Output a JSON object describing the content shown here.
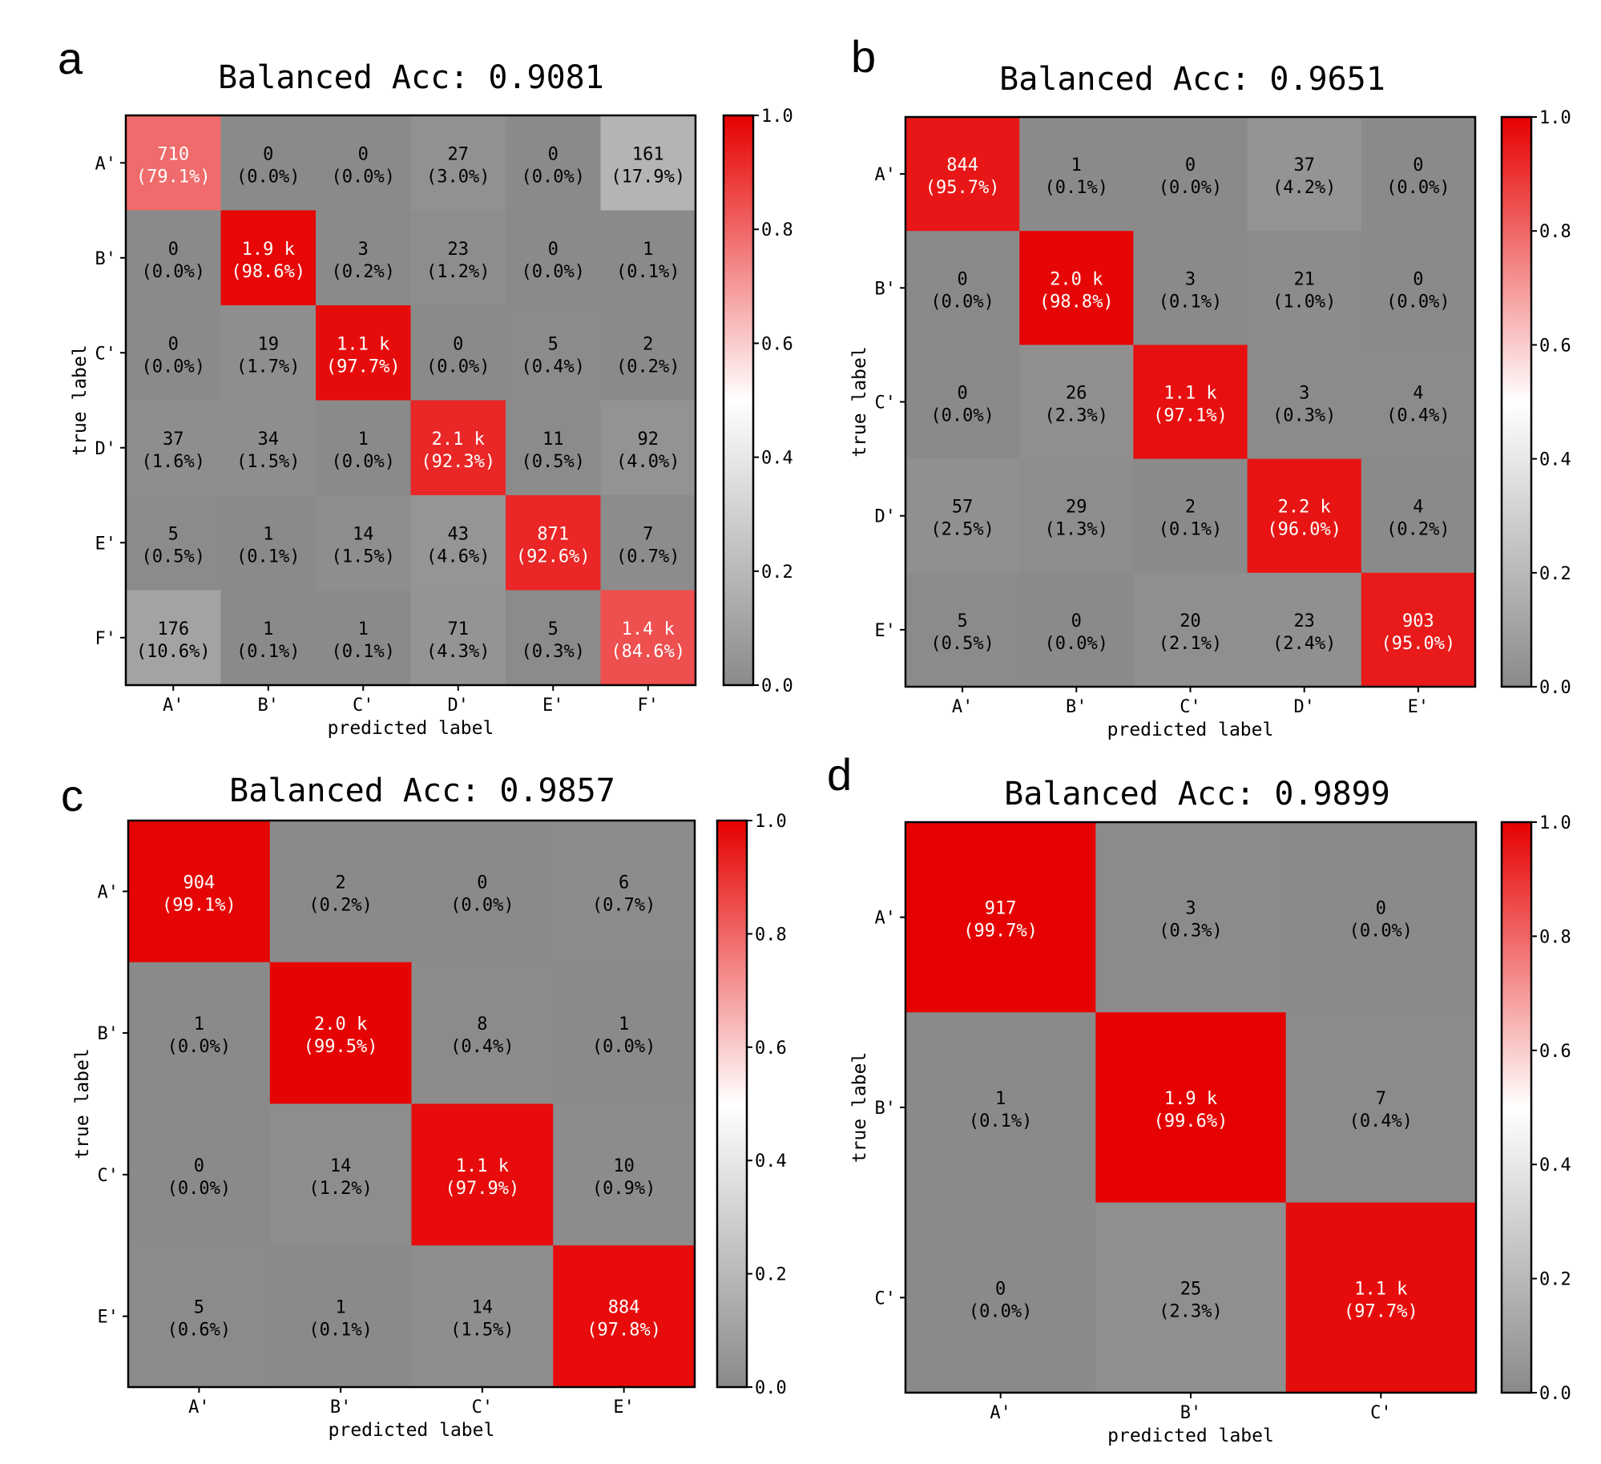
{
  "chart_data": [
    {
      "type": "heatmap",
      "panel": "a",
      "title": "Balanced Acc: 0.9081",
      "xlabel": "predicted label",
      "ylabel": "true label",
      "x_categories": [
        "A'",
        "B'",
        "C'",
        "D'",
        "E'",
        "F'"
      ],
      "y_categories": [
        "A'",
        "B'",
        "C'",
        "D'",
        "E'",
        "F'"
      ],
      "counts": [
        [
          "710",
          "0",
          "0",
          "27",
          "0",
          "161"
        ],
        [
          "0",
          "1.9 k",
          "3",
          "23",
          "0",
          "1"
        ],
        [
          "0",
          "19",
          "1.1 k",
          "0",
          "5",
          "2"
        ],
        [
          "37",
          "34",
          "1",
          "2.1 k",
          "11",
          "92"
        ],
        [
          "5",
          "1",
          "14",
          "43",
          "871",
          "7"
        ],
        [
          "176",
          "1",
          "1",
          "71",
          "5",
          "1.4 k"
        ]
      ],
      "percents": [
        [
          "(79.1%)",
          "(0.0%)",
          "(0.0%)",
          "(3.0%)",
          "(0.0%)",
          "(17.9%)"
        ],
        [
          "(0.0%)",
          "(98.6%)",
          "(0.2%)",
          "(1.2%)",
          "(0.0%)",
          "(0.1%)"
        ],
        [
          "(0.0%)",
          "(1.7%)",
          "(97.7%)",
          "(0.0%)",
          "(0.4%)",
          "(0.2%)"
        ],
        [
          "(1.6%)",
          "(1.5%)",
          "(0.0%)",
          "(92.3%)",
          "(0.5%)",
          "(4.0%)"
        ],
        [
          "(0.5%)",
          "(0.1%)",
          "(1.5%)",
          "(4.6%)",
          "(92.6%)",
          "(0.7%)"
        ],
        [
          "(10.6%)",
          "(0.1%)",
          "(0.1%)",
          "(4.3%)",
          "(0.3%)",
          "(84.6%)"
        ]
      ],
      "values": [
        [
          0.791,
          0.0,
          0.0,
          0.03,
          0.0,
          0.179
        ],
        [
          0.0,
          0.986,
          0.002,
          0.012,
          0.0,
          0.001
        ],
        [
          0.0,
          0.017,
          0.977,
          0.0,
          0.004,
          0.002
        ],
        [
          0.016,
          0.015,
          0.0,
          0.923,
          0.005,
          0.04
        ],
        [
          0.005,
          0.001,
          0.015,
          0.046,
          0.926,
          0.007
        ],
        [
          0.106,
          0.001,
          0.001,
          0.043,
          0.003,
          0.846
        ]
      ],
      "colorbar_ticks": [
        "0.0",
        "0.2",
        "0.4",
        "0.6",
        "0.8",
        "1.0"
      ],
      "vmin": 0.0,
      "vmax": 1.0
    },
    {
      "type": "heatmap",
      "panel": "b",
      "title": "Balanced Acc: 0.9651",
      "xlabel": "predicted label",
      "ylabel": "true label",
      "x_categories": [
        "A'",
        "B'",
        "C'",
        "D'",
        "E'"
      ],
      "y_categories": [
        "A'",
        "B'",
        "C'",
        "D'",
        "E'"
      ],
      "counts": [
        [
          "844",
          "1",
          "0",
          "37",
          "0"
        ],
        [
          "0",
          "2.0 k",
          "3",
          "21",
          "0"
        ],
        [
          "0",
          "26",
          "1.1 k",
          "3",
          "4"
        ],
        [
          "57",
          "29",
          "2",
          "2.2 k",
          "4"
        ],
        [
          "5",
          "0",
          "20",
          "23",
          "903"
        ]
      ],
      "percents": [
        [
          "(95.7%)",
          "(0.1%)",
          "(0.0%)",
          "(4.2%)",
          "(0.0%)"
        ],
        [
          "(0.0%)",
          "(98.8%)",
          "(0.1%)",
          "(1.0%)",
          "(0.0%)"
        ],
        [
          "(0.0%)",
          "(2.3%)",
          "(97.1%)",
          "(0.3%)",
          "(0.4%)"
        ],
        [
          "(2.5%)",
          "(1.3%)",
          "(0.1%)",
          "(96.0%)",
          "(0.2%)"
        ],
        [
          "(0.5%)",
          "(0.0%)",
          "(2.1%)",
          "(2.4%)",
          "(95.0%)"
        ]
      ],
      "values": [
        [
          0.957,
          0.001,
          0.0,
          0.042,
          0.0
        ],
        [
          0.0,
          0.988,
          0.001,
          0.01,
          0.0
        ],
        [
          0.0,
          0.023,
          0.971,
          0.003,
          0.004
        ],
        [
          0.025,
          0.013,
          0.001,
          0.96,
          0.002
        ],
        [
          0.005,
          0.0,
          0.021,
          0.024,
          0.95
        ]
      ],
      "colorbar_ticks": [
        "0.0",
        "0.2",
        "0.4",
        "0.6",
        "0.8",
        "1.0"
      ],
      "vmin": 0.0,
      "vmax": 1.0
    },
    {
      "type": "heatmap",
      "panel": "c",
      "title": "Balanced Acc: 0.9857",
      "xlabel": "predicted label",
      "ylabel": "true label",
      "x_categories": [
        "A'",
        "B'",
        "C'",
        "E'"
      ],
      "y_categories": [
        "A'",
        "B'",
        "C'",
        "E'"
      ],
      "counts": [
        [
          "904",
          "2",
          "0",
          "6"
        ],
        [
          "1",
          "2.0 k",
          "8",
          "1"
        ],
        [
          "0",
          "14",
          "1.1 k",
          "10"
        ],
        [
          "5",
          "1",
          "14",
          "884"
        ]
      ],
      "percents": [
        [
          "(99.1%)",
          "(0.2%)",
          "(0.0%)",
          "(0.7%)"
        ],
        [
          "(0.0%)",
          "(99.5%)",
          "(0.4%)",
          "(0.0%)"
        ],
        [
          "(0.0%)",
          "(1.2%)",
          "(97.9%)",
          "(0.9%)"
        ],
        [
          "(0.6%)",
          "(0.1%)",
          "(1.5%)",
          "(97.8%)"
        ]
      ],
      "values": [
        [
          0.991,
          0.002,
          0.0,
          0.007
        ],
        [
          0.0,
          0.995,
          0.004,
          0.0
        ],
        [
          0.0,
          0.012,
          0.979,
          0.009
        ],
        [
          0.006,
          0.001,
          0.015,
          0.978
        ]
      ],
      "colorbar_ticks": [
        "0.0",
        "0.2",
        "0.4",
        "0.6",
        "0.8",
        "1.0"
      ],
      "vmin": 0.0,
      "vmax": 1.0
    },
    {
      "type": "heatmap",
      "panel": "d",
      "title": "Balanced Acc: 0.9899",
      "xlabel": "predicted label",
      "ylabel": "true label",
      "x_categories": [
        "A'",
        "B'",
        "C'"
      ],
      "y_categories": [
        "A'",
        "B'",
        "C'"
      ],
      "counts": [
        [
          "917",
          "3",
          "0"
        ],
        [
          "1",
          "1.9 k",
          "7"
        ],
        [
          "0",
          "25",
          "1.1 k"
        ]
      ],
      "percents": [
        [
          "(99.7%)",
          "(0.3%)",
          "(0.0%)"
        ],
        [
          "(0.1%)",
          "(99.6%)",
          "(0.4%)"
        ],
        [
          "(0.0%)",
          "(2.3%)",
          "(97.7%)"
        ]
      ],
      "values": [
        [
          0.997,
          0.003,
          0.0
        ],
        [
          0.001,
          0.996,
          0.004
        ],
        [
          0.0,
          0.023,
          0.977
        ]
      ],
      "colorbar_ticks": [
        "0.0",
        "0.2",
        "0.4",
        "0.6",
        "0.8",
        "1.0"
      ],
      "vmin": 0.0,
      "vmax": 1.0
    }
  ],
  "colors": {
    "low": "#8a8a8a",
    "mid": "#ffffff",
    "high": "#e60000",
    "text_dark": "#000000",
    "text_light": "#ffffff"
  }
}
